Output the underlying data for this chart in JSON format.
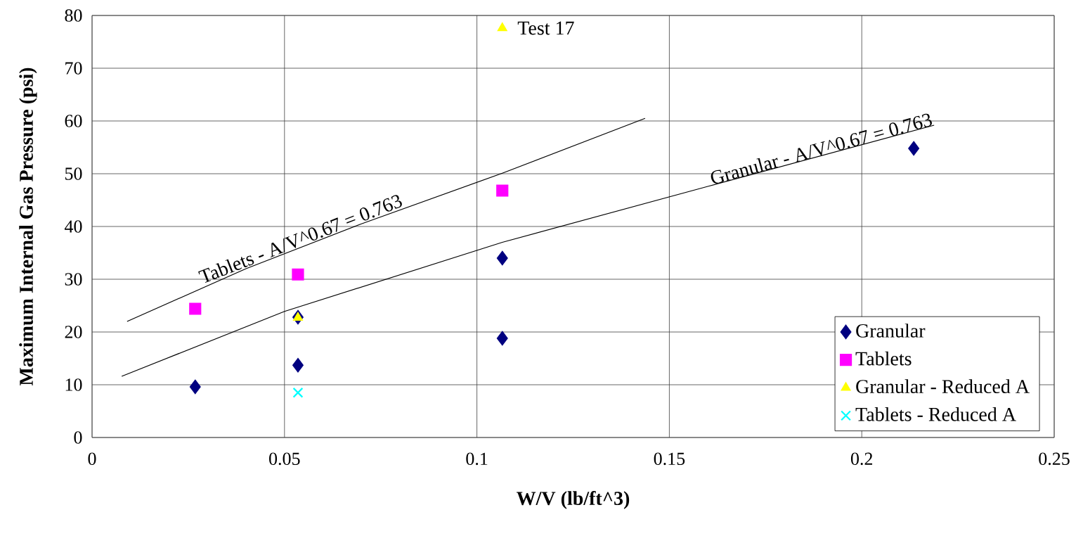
{
  "chart_data": {
    "type": "scatter",
    "xlabel": "W/V (lb/ft^3)",
    "ylabel": "Maximum Internal Gas Pressure (psi)",
    "xlim": [
      0,
      0.25
    ],
    "ylim": [
      0,
      80
    ],
    "xticks": [
      0,
      0.05,
      0.1,
      0.15,
      0.2,
      0.25
    ],
    "yticks": [
      0,
      10,
      20,
      30,
      40,
      50,
      60,
      70,
      80
    ],
    "grid": true,
    "legend": "bottom right",
    "series": [
      {
        "name": "Granular",
        "color": "#000080",
        "marker": "diamond",
        "x": [
          0.0268,
          0.0535,
          0.0535,
          0.1066,
          0.1066,
          0.2135
        ],
        "values": [
          9.6,
          13.7,
          22.8,
          34.0,
          18.8,
          54.8
        ]
      },
      {
        "name": "Tablets",
        "color": "#ff00ff",
        "marker": "square",
        "x": [
          0.0268,
          0.0535,
          0.1066
        ],
        "values": [
          24.4,
          30.9,
          46.8
        ]
      },
      {
        "name": "Granular - Reduced A",
        "color": "#ffff00",
        "marker": "triangle",
        "x": [
          0.0535,
          0.1066
        ],
        "values": [
          22.7,
          77.6
        ]
      },
      {
        "name": "Tablets - Reduced A",
        "color": "#00ffff",
        "marker": "cross",
        "x": [
          0.0535
        ],
        "values": [
          8.5
        ]
      },
      {
        "type": "line",
        "color": "#000000",
        "marker": "none",
        "line_style": "solid",
        "x": [
          0.0091,
          0.04,
          0.07,
          0.1066,
          0.1437
        ],
        "values": [
          22.0,
          32.0,
          40.5,
          50.1,
          60.5
        ]
      },
      {
        "type": "line",
        "color": "#000000",
        "marker": "none",
        "line_style": "solid",
        "x": [
          0.0077,
          0.05,
          0.1066,
          0.16,
          0.2188
        ],
        "values": [
          11.6,
          23.9,
          37.0,
          47.6,
          59.2
        ]
      }
    ],
    "annotations": [
      {
        "text": "Test 17",
        "x": 0.1066,
        "y": 77.6
      },
      {
        "text": "Tablets - A/V^0.67 = 0.763",
        "x": 0.055,
        "y": 36.2
      },
      {
        "text": "Granular - A/V^0.67 = 0.763",
        "x": 0.19,
        "y": 53.2
      }
    ]
  }
}
